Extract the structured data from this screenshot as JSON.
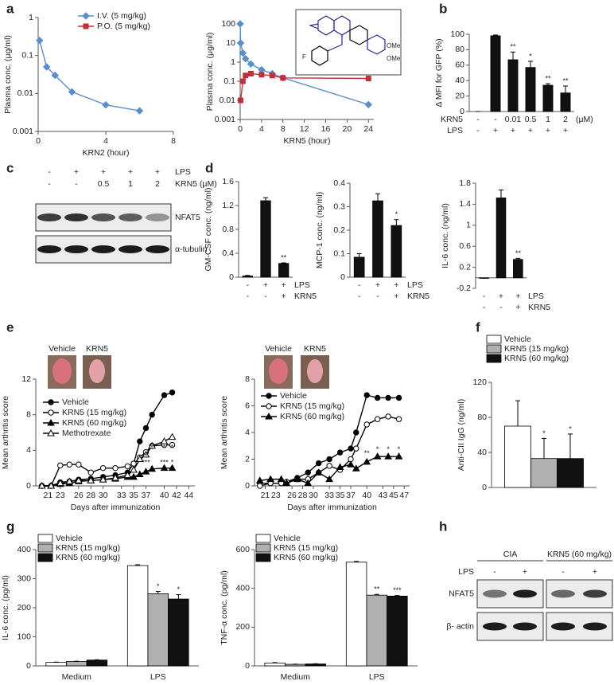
{
  "panel_letters": [
    "a",
    "b",
    "c",
    "d",
    "e",
    "f",
    "g",
    "h"
  ],
  "structure_labels": [
    "OMe",
    "OMe",
    "F"
  ],
  "photo_labels": [
    "Vehicle",
    "KRN5",
    "Vehicle",
    "KRN5"
  ],
  "blots": [
    {
      "rows": [
        {
          "name": "LPS",
          "cells": [
            "-",
            "+",
            "+",
            "+",
            "+"
          ]
        },
        {
          "name": "KRN5 (μM)",
          "cells": [
            "-",
            "-",
            "0.5",
            "1",
            "2"
          ]
        }
      ],
      "bands": [
        "NFAT5",
        "α-tubulin"
      ]
    },
    {
      "groups": [
        "CIA",
        "KRN5 (60 mg/kg)"
      ],
      "rows": [
        {
          "name": "LPS",
          "cells": [
            "-",
            "+",
            "-",
            "+"
          ]
        }
      ],
      "bands": [
        "NFAT5",
        "β- actin"
      ]
    }
  ],
  "chart_data": [
    {
      "type": "line",
      "xlabel": "KRN2 (hour)",
      "ylabel": "Plasma conc. (μg/ml)",
      "log_y": true,
      "x": [
        0.083,
        0.5,
        1,
        2,
        4,
        6
      ],
      "xlim": [
        0,
        8
      ],
      "xticks": [
        0,
        4,
        8
      ],
      "ylim": [
        0.001,
        1
      ],
      "yticks": [
        0.001,
        0.01,
        0.1,
        1
      ],
      "series": [
        {
          "color": "#5b8ec9",
          "marker": "diamond",
          "values": [
            0.25,
            0.05,
            0.03,
            0.011,
            0.005,
            0.0035
          ]
        }
      ]
    },
    {
      "type": "line",
      "xlabel": "KRN5 (hour)",
      "ylabel": "Plasma conc. (μg/ml)",
      "log_y": true,
      "x": [
        0,
        0.083,
        0.5,
        1,
        2,
        4,
        6,
        8,
        24
      ],
      "xlim": [
        0,
        25
      ],
      "xticks": [
        0,
        4,
        8,
        12,
        16,
        20,
        24
      ],
      "ylim": [
        0.001,
        100
      ],
      "yticks": [
        0.001,
        0.01,
        0.1,
        1,
        10,
        100
      ],
      "series": [
        {
          "name": "I.V.  (5 mg/kg)",
          "color": "#5b8ec9",
          "marker": "diamond",
          "values": [
            100,
            10,
            3,
            1.5,
            0.8,
            0.4,
            0.25,
            0.15,
            0.006
          ]
        },
        {
          "name": "P.O. (5 mg/kg)",
          "color": "#c0303a",
          "marker": "square",
          "values": [
            null,
            0.01,
            0.1,
            0.2,
            0.25,
            0.22,
            0.2,
            0.15,
            0.14
          ]
        }
      ]
    },
    {
      "type": "bar",
      "ylabel": "Δ MFI for GFP (%)",
      "color": "#111111",
      "values": [
        0,
        98,
        67,
        57,
        34,
        24
      ],
      "errors": [
        0,
        1,
        10,
        8,
        2,
        9
      ],
      "stars": [
        null,
        null,
        "**",
        "*",
        "**",
        "**"
      ],
      "ylim": [
        0,
        100
      ],
      "yticks": [
        0,
        20,
        40,
        60,
        80,
        100
      ],
      "rows": [
        {
          "name": "KRN5",
          "cells": [
            "-",
            "-",
            "0.01",
            "0.5",
            "1",
            "2"
          ]
        },
        {
          "name": "LPS",
          "cells": [
            "-",
            "+",
            "+",
            "+",
            "+",
            "+"
          ]
        }
      ],
      "unit": "(μM)"
    },
    {
      "type": "bar",
      "ylabel": "GM-CSF conc. (ng/ml)",
      "color": "#111111",
      "values": [
        0.02,
        1.28,
        0.23
      ],
      "errors": [
        0.01,
        0.05,
        0.01
      ],
      "stars": [
        null,
        null,
        "**"
      ],
      "ylim": [
        0,
        1.6
      ],
      "yticks": [
        0,
        0.4,
        0.8,
        1.2,
        1.6
      ],
      "rows": [
        {
          "name": "LPS",
          "cells": [
            "-",
            "+",
            "+"
          ]
        },
        {
          "name": "KRN5",
          "cells": [
            "-",
            "-",
            "+"
          ]
        }
      ]
    },
    {
      "type": "bar",
      "ylabel": "MCP-1 conc. (ng/ml)",
      "color": "#111111",
      "values": [
        0.085,
        0.325,
        0.22
      ],
      "errors": [
        0.015,
        0.03,
        0.025
      ],
      "stars": [
        null,
        null,
        "*"
      ],
      "ylim": [
        0,
        0.4
      ],
      "yticks": [
        0,
        0.1,
        0.2,
        0.3,
        0.4
      ],
      "rows": [
        {
          "name": "LPS",
          "cells": [
            "-",
            "+",
            "+"
          ]
        },
        {
          "name": "KRN5",
          "cells": [
            "-",
            "-",
            "+"
          ]
        }
      ]
    },
    {
      "type": "bar",
      "ylabel": "IL-6 conc. (ng/ml)",
      "color": "#111111",
      "values": [
        -0.01,
        1.52,
        0.35
      ],
      "errors": [
        0.005,
        0.15,
        0.02
      ],
      "stars": [
        null,
        null,
        "**"
      ],
      "ylim": [
        -0.2,
        1.8
      ],
      "yticks": [
        -0.2,
        0.2,
        0.6,
        1,
        1.4,
        1.8
      ],
      "rows": [
        {
          "name": "LPS",
          "cells": [
            "-",
            "+",
            "+"
          ]
        },
        {
          "name": "KRN5",
          "cells": [
            "-",
            "-",
            "+"
          ]
        }
      ]
    },
    {
      "type": "line",
      "xlabel": "Days after immunization",
      "ylabel": "Mean arthritis score",
      "x": [
        20,
        21.5,
        23,
        24.5,
        26,
        28,
        30,
        32,
        34,
        35,
        36,
        37,
        38,
        40,
        41.3
      ],
      "xlim": [
        19,
        45
      ],
      "xticks": [
        21,
        23,
        26,
        28,
        30,
        33,
        35,
        37,
        40,
        42,
        44
      ],
      "ylim": [
        0,
        12
      ],
      "yticks": [
        0,
        4,
        8,
        12
      ],
      "series": [
        {
          "name": "Vehicle",
          "color": "#000000",
          "marker": "circle",
          "values": [
            0,
            0,
            0.4,
            0.5,
            0.7,
            0.8,
            1,
            1.2,
            1.5,
            2.5,
            5,
            6.5,
            8,
            10.2,
            10.5
          ]
        },
        {
          "name": "KRN5 (15 mg/kg)",
          "color": "#000000",
          "marker": "circle-open",
          "values": [
            0,
            0,
            2.3,
            2.4,
            2.4,
            1.5,
            2,
            2,
            2.2,
            2.5,
            3.2,
            3.8,
            4.5,
            4.6,
            4.6
          ]
        },
        {
          "name": "KRN5 (60 mg/kg)",
          "color": "#000000",
          "marker": "triangle",
          "values": [
            0,
            0,
            0.2,
            0.3,
            0.5,
            0.6,
            0.7,
            0.8,
            1,
            1,
            1.3,
            1.6,
            1.9,
            2,
            2
          ]
        },
        {
          "name": "Methotrexate",
          "color": "#000000",
          "marker": "triangle-open",
          "values": [
            0,
            0,
            0.3,
            0.5,
            0.6,
            0.6,
            0.7,
            0.9,
            1.2,
            1.8,
            3,
            3.5,
            4.5,
            5,
            5.5
          ]
        }
      ],
      "annotations": [
        {
          "text": "*",
          "x": 38,
          "y": 4.3
        },
        {
          "text": "*",
          "x": 40,
          "y": 4.3
        },
        {
          "text": "*",
          "x": 41.3,
          "y": 4.3
        },
        {
          "text": "*",
          "x": 37,
          "y": 3.3
        },
        {
          "text": "***",
          "x": 37,
          "y": 2.6
        },
        {
          "text": "***",
          "x": 40,
          "y": 2.6
        },
        {
          "text": "*",
          "x": 41.3,
          "y": 2.6
        }
      ]
    },
    {
      "type": "line",
      "xlabel": "Days after immunization",
      "ylabel": "Mean arthritis score",
      "x": [
        20,
        22,
        24,
        25,
        27,
        29,
        31,
        33,
        35,
        37,
        38,
        40,
        42,
        44,
        46
      ],
      "xlim": [
        19,
        48
      ],
      "xticks": [
        21,
        23,
        26,
        28,
        30,
        33,
        35,
        37,
        40,
        43,
        45,
        47
      ],
      "ylim": [
        0,
        8
      ],
      "yticks": [
        0,
        2,
        4,
        6,
        8
      ],
      "series": [
        {
          "name": "Vehicle",
          "color": "#000000",
          "marker": "circle",
          "values": [
            0.2,
            0.2,
            0.2,
            0.3,
            0.6,
            1,
            1.7,
            2,
            2.5,
            2.8,
            4,
            6.8,
            6.6,
            6.6,
            6.6
          ]
        },
        {
          "name": "KRN5 (15 mg/kg)",
          "color": "#000000",
          "marker": "circle-open",
          "values": [
            0,
            0.2,
            0.2,
            0.3,
            0.5,
            0.5,
            1,
            1.5,
            1.2,
            2,
            2.8,
            4.6,
            5,
            5.2,
            5
          ]
        },
        {
          "name": "KRN5 (60 mg/kg)",
          "color": "#000000",
          "marker": "triangle",
          "values": [
            0.4,
            0.5,
            0.5,
            0.2,
            0.5,
            0.2,
            1,
            0.5,
            1.4,
            1.6,
            1.3,
            1.8,
            2.2,
            2.2,
            2.2
          ]
        }
      ],
      "annotations": [
        {
          "text": "**",
          "x": 40,
          "y": 2.4
        },
        {
          "text": "*",
          "x": 42,
          "y": 2.7
        },
        {
          "text": "*",
          "x": 44,
          "y": 2.7
        },
        {
          "text": "*",
          "x": 46,
          "y": 2.7
        }
      ]
    },
    {
      "type": "bar",
      "ylabel": "Anti-CII IgG (ng/ml)",
      "categories": [
        null
      ],
      "ylim": [
        0,
        120
      ],
      "yticks": [
        0,
        40,
        80,
        120
      ],
      "series": [
        {
          "name": "Vehicle",
          "color": "#ffffff",
          "values": [
            70
          ],
          "errors": [
            29
          ],
          "stars": [
            null
          ]
        },
        {
          "name": "KRN5 (15 mg/kg)",
          "color": "#b0b0b0",
          "values": [
            33
          ],
          "errors": [
            23
          ],
          "stars": [
            "*"
          ]
        },
        {
          "name": "KRN5 (60 mg/kg)",
          "color": "#111111",
          "values": [
            33
          ],
          "errors": [
            28
          ],
          "stars": [
            "*"
          ]
        }
      ]
    },
    {
      "type": "bar",
      "ylabel": "IL-6 conc. (pg/ml)",
      "categories": [
        "Medium",
        "LPS"
      ],
      "ylim": [
        0,
        400
      ],
      "yticks": [
        0,
        100,
        200,
        300,
        400
      ],
      "series": [
        {
          "name": "Vehicle",
          "color": "#ffffff",
          "values": [
            12,
            345
          ],
          "errors": [
            1,
            3
          ],
          "stars": [
            null,
            null
          ]
        },
        {
          "name": "KRN5 (15 mg/kg)",
          "color": "#b0b0b0",
          "values": [
            15,
            248
          ],
          "errors": [
            1,
            8
          ],
          "stars": [
            null,
            "*"
          ]
        },
        {
          "name": "KRN5 (60 mg/kg)",
          "color": "#111111",
          "values": [
            20,
            230
          ],
          "errors": [
            1,
            15
          ],
          "stars": [
            null,
            "*"
          ]
        }
      ]
    },
    {
      "type": "bar",
      "ylabel": "TNF-α conc. (pg/ml)",
      "categories": [
        "Medium",
        "LPS"
      ],
      "ylim": [
        0,
        600
      ],
      "yticks": [
        0,
        200,
        400,
        600
      ],
      "series": [
        {
          "name": "Vehicle",
          "color": "#ffffff",
          "values": [
            15,
            535
          ],
          "errors": [
            2,
            4
          ],
          "stars": [
            null,
            null
          ]
        },
        {
          "name": "KRN5 (15 mg/kg)",
          "color": "#b0b0b0",
          "values": [
            8,
            365
          ],
          "errors": [
            1,
            4
          ],
          "stars": [
            null,
            "**"
          ]
        },
        {
          "name": "KRN5 (60 mg/kg)",
          "color": "#111111",
          "values": [
            10,
            360
          ],
          "errors": [
            1,
            3
          ],
          "stars": [
            null,
            "***"
          ]
        }
      ]
    }
  ]
}
